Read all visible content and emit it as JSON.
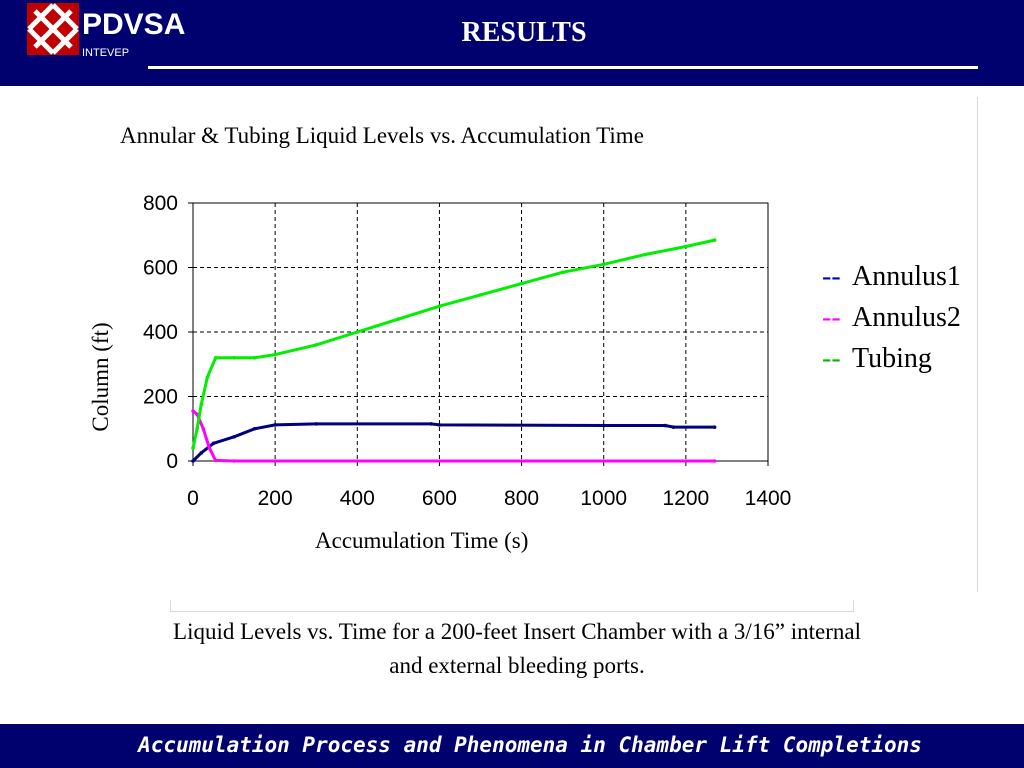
{
  "header": {
    "logo_name": "PDVSA",
    "logo_sub": "INTEVEP",
    "title": "RESULTS"
  },
  "footer": {
    "text": "Accumulation Process and Phenomena in Chamber Lift Completions"
  },
  "caption": {
    "line1": "Liquid Levels vs. Time for a 200-feet Insert Chamber with a 3/16” internal",
    "line2": "and external bleeding ports."
  },
  "colors": {
    "header_bg": "#00006e",
    "annulus1": "#000080",
    "annulus2": "#ff00ff",
    "tubing": "#00ee00",
    "legend_annulus1": "#0000cc",
    "legend_annulus2": "#ff00ff",
    "legend_tubing": "#00bb00"
  },
  "chart_data": {
    "type": "line",
    "title": "Annular &  Tubing Liquid Levels vs. Accumulation Time",
    "xlabel": "Accumulation Time (s)",
    "ylabel": "Column (ft)",
    "xlim": [
      0,
      1400
    ],
    "ylim": [
      0,
      800
    ],
    "xticks": [
      0,
      200,
      400,
      600,
      800,
      1000,
      1200,
      1400
    ],
    "yticks": [
      0,
      200,
      400,
      600,
      800
    ],
    "grid": true,
    "legend_position": "right",
    "series": [
      {
        "name": "Annulus1",
        "legend_marker": "--",
        "color": "#000080",
        "points": [
          [
            0,
            0
          ],
          [
            20,
            25
          ],
          [
            50,
            55
          ],
          [
            100,
            75
          ],
          [
            150,
            100
          ],
          [
            200,
            112
          ],
          [
            300,
            115
          ],
          [
            580,
            115
          ],
          [
            600,
            112
          ],
          [
            1000,
            110
          ],
          [
            1150,
            110
          ],
          [
            1170,
            105
          ],
          [
            1270,
            105
          ]
        ]
      },
      {
        "name": "Annulus2",
        "legend_marker": "--",
        "color": "#ff00ff",
        "points": [
          [
            0,
            155
          ],
          [
            10,
            145
          ],
          [
            25,
            100
          ],
          [
            40,
            40
          ],
          [
            55,
            2
          ],
          [
            100,
            0
          ],
          [
            1270,
            0
          ]
        ]
      },
      {
        "name": "Tubing",
        "legend_marker": "--",
        "color": "#00ee00",
        "points": [
          [
            0,
            40
          ],
          [
            10,
            100
          ],
          [
            20,
            175
          ],
          [
            35,
            260
          ],
          [
            55,
            320
          ],
          [
            100,
            320
          ],
          [
            150,
            320
          ],
          [
            200,
            330
          ],
          [
            300,
            360
          ],
          [
            400,
            400
          ],
          [
            500,
            440
          ],
          [
            600,
            480
          ],
          [
            700,
            515
          ],
          [
            800,
            550
          ],
          [
            900,
            585
          ],
          [
            1000,
            610
          ],
          [
            1100,
            640
          ],
          [
            1200,
            665
          ],
          [
            1270,
            685
          ]
        ]
      }
    ]
  }
}
